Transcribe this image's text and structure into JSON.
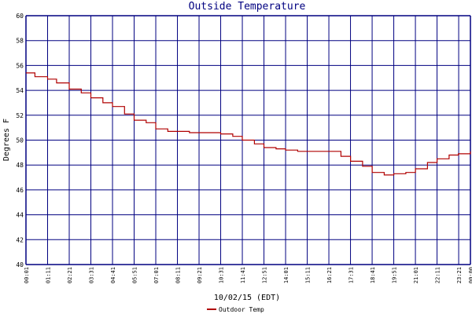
{
  "chart_data": {
    "type": "line",
    "title": "Outside Temperature",
    "ylabel": "Degrees F",
    "xlabel": "10/02/15 (EDT)",
    "ylim": [
      40,
      60
    ],
    "y_ticks": [
      40,
      42,
      44,
      46,
      48,
      50,
      52,
      54,
      56,
      58,
      60
    ],
    "x_tick_labels": [
      "00:01",
      "01:11",
      "02:21",
      "03:31",
      "04:41",
      "05:51",
      "07:01",
      "08:11",
      "09:21",
      "10:31",
      "11:41",
      "12:51",
      "14:01",
      "15:11",
      "16:21",
      "17:31",
      "18:41",
      "19:51",
      "21:01",
      "22:11",
      "23:21",
      "00:00"
    ],
    "grid": true,
    "legend_placement": "bottom",
    "colors": {
      "series": "#b00000",
      "grid": "#000080",
      "title": "#000080"
    },
    "series": [
      {
        "name": "Outdoor Temp",
        "x": [
          "00:01",
          "00:30",
          "01:11",
          "01:40",
          "02:21",
          "03:00",
          "03:31",
          "04:10",
          "04:41",
          "05:20",
          "05:51",
          "06:30",
          "07:01",
          "07:40",
          "08:11",
          "08:50",
          "09:21",
          "10:00",
          "10:31",
          "11:10",
          "11:41",
          "12:20",
          "12:51",
          "13:30",
          "14:01",
          "14:40",
          "15:11",
          "15:50",
          "16:21",
          "17:00",
          "17:31",
          "18:10",
          "18:41",
          "19:20",
          "19:51",
          "20:30",
          "21:01",
          "21:40",
          "22:11",
          "22:50",
          "23:20",
          "23:59"
        ],
        "values": [
          55.4,
          55.1,
          54.9,
          54.6,
          54.1,
          53.8,
          53.4,
          53.0,
          52.7,
          52.1,
          51.6,
          51.4,
          50.9,
          50.7,
          50.7,
          50.6,
          50.6,
          50.6,
          50.5,
          50.3,
          50.0,
          49.7,
          49.4,
          49.3,
          49.2,
          49.1,
          49.1,
          49.1,
          49.1,
          48.7,
          48.3,
          47.9,
          47.4,
          47.2,
          47.3,
          47.4,
          47.7,
          48.2,
          48.5,
          48.8,
          48.9,
          49.1
        ]
      }
    ]
  }
}
